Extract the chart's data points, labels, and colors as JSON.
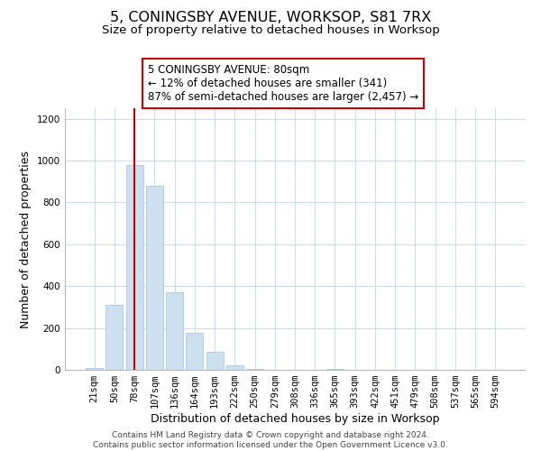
{
  "title": "5, CONINGSBY AVENUE, WORKSOP, S81 7RX",
  "subtitle": "Size of property relative to detached houses in Worksop",
  "xlabel": "Distribution of detached houses by size in Worksop",
  "ylabel": "Number of detached properties",
  "bar_labels": [
    "21sqm",
    "50sqm",
    "78sqm",
    "107sqm",
    "136sqm",
    "164sqm",
    "193sqm",
    "222sqm",
    "250sqm",
    "279sqm",
    "308sqm",
    "336sqm",
    "365sqm",
    "393sqm",
    "422sqm",
    "451sqm",
    "479sqm",
    "508sqm",
    "537sqm",
    "565sqm",
    "594sqm"
  ],
  "bar_values": [
    10,
    310,
    980,
    880,
    370,
    175,
    85,
    20,
    5,
    0,
    0,
    0,
    5,
    0,
    0,
    0,
    0,
    0,
    0,
    0,
    0
  ],
  "bar_color": "#cce0f0",
  "bar_edge_color": "#a8c8e8",
  "vline_x_index": 2,
  "vline_color": "#cc0000",
  "ylim": [
    0,
    1250
  ],
  "yticks": [
    0,
    200,
    400,
    600,
    800,
    1000,
    1200
  ],
  "annotation_title": "5 CONINGSBY AVENUE: 80sqm",
  "annotation_line1": "← 12% of detached houses are smaller (341)",
  "annotation_line2": "87% of semi-detached houses are larger (2,457) →",
  "annotation_box_color": "#ffffff",
  "annotation_box_edge": "#cc0000",
  "footer_line1": "Contains HM Land Registry data © Crown copyright and database right 2024.",
  "footer_line2": "Contains public sector information licensed under the Open Government Licence v3.0.",
  "background_color": "#ffffff",
  "grid_color": "#ccdde8",
  "title_fontsize": 11.5,
  "subtitle_fontsize": 9.5,
  "axis_label_fontsize": 9,
  "tick_fontsize": 7.5,
  "annotation_fontsize": 8.5,
  "footer_fontsize": 6.5
}
